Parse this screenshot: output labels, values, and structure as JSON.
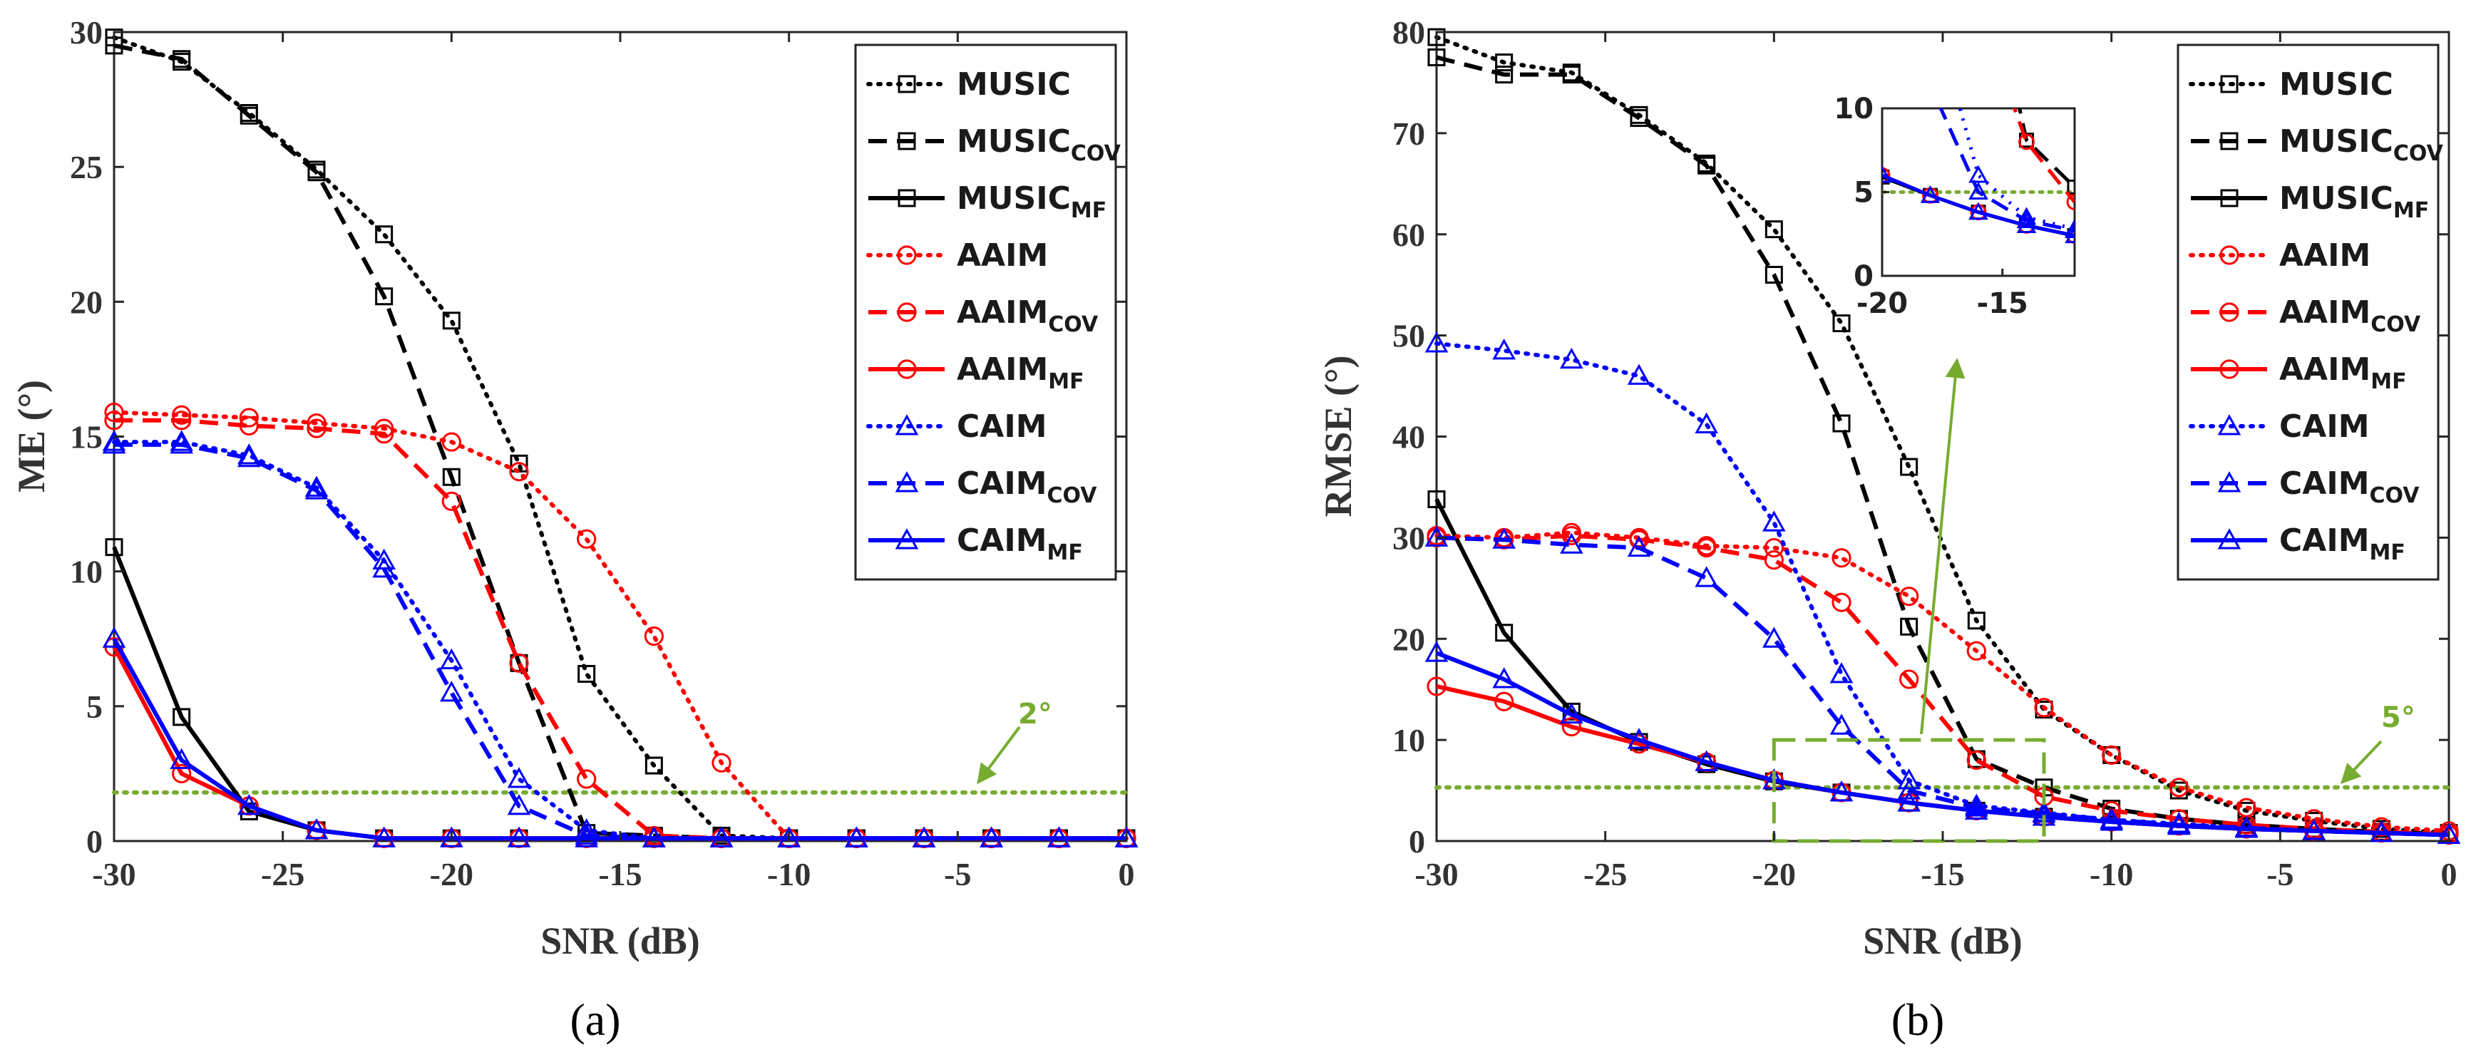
{
  "chart_data": [
    {
      "id": "a",
      "type": "line",
      "caption": "(a)",
      "xlabel": "SNR (dB)",
      "ylabel": "ME (°)",
      "xlim": [
        -30,
        0
      ],
      "ylim": [
        0,
        30
      ],
      "xticks": [
        -30,
        -25,
        -20,
        -15,
        -10,
        -5,
        0
      ],
      "yticks": [
        0,
        5,
        10,
        15,
        20,
        25,
        30
      ],
      "legend_position": "top-right",
      "x": [
        -30,
        -28,
        -26,
        -24,
        -22,
        -20,
        -18,
        -16,
        -14,
        -12,
        -10,
        -8,
        -6,
        -4,
        -2,
        0
      ],
      "threshold": {
        "value": 1.8,
        "label": "2°",
        "color": "#77ac30"
      },
      "series": [
        {
          "name": "MUSIC",
          "sub": "",
          "color": "#000000",
          "style": "dot",
          "marker": "square",
          "values": [
            29.8,
            28.9,
            27.0,
            24.9,
            22.5,
            19.3,
            14.0,
            6.2,
            2.8,
            0.2,
            0.1,
            0.1,
            0.1,
            0.1,
            0.1,
            0.1
          ]
        },
        {
          "name": "MUSIC",
          "sub": "COV",
          "color": "#000000",
          "style": "dash",
          "marker": "square",
          "values": [
            29.5,
            29.0,
            26.9,
            24.8,
            20.2,
            13.5,
            6.6,
            0.3,
            0.2,
            0.1,
            0.1,
            0.1,
            0.1,
            0.1,
            0.1,
            0.1
          ]
        },
        {
          "name": "MUSIC",
          "sub": "MF",
          "color": "#000000",
          "style": "solid",
          "marker": "square",
          "values": [
            10.9,
            4.6,
            1.1,
            0.4,
            0.1,
            0.1,
            0.1,
            0.1,
            0.1,
            0.1,
            0.1,
            0.1,
            0.1,
            0.1,
            0.1,
            0.1
          ]
        },
        {
          "name": "AAIM",
          "sub": "",
          "color": "#ff0000",
          "style": "dot",
          "marker": "circle",
          "values": [
            15.9,
            15.8,
            15.7,
            15.5,
            15.3,
            14.8,
            13.7,
            11.2,
            7.6,
            2.9,
            0.1,
            0.1,
            0.1,
            0.1,
            0.1,
            0.1
          ]
        },
        {
          "name": "AAIM",
          "sub": "COV",
          "color": "#ff0000",
          "style": "dash",
          "marker": "circle",
          "values": [
            15.6,
            15.6,
            15.4,
            15.3,
            15.1,
            12.6,
            6.6,
            2.3,
            0.2,
            0.1,
            0.1,
            0.1,
            0.1,
            0.1,
            0.1,
            0.1
          ]
        },
        {
          "name": "AAIM",
          "sub": "MF",
          "color": "#ff0000",
          "style": "solid",
          "marker": "circle",
          "values": [
            7.2,
            2.5,
            1.3,
            0.4,
            0.1,
            0.1,
            0.1,
            0.1,
            0.1,
            0.1,
            0.1,
            0.1,
            0.1,
            0.1,
            0.1,
            0.1
          ]
        },
        {
          "name": "CAIM",
          "sub": "",
          "color": "#0000ff",
          "style": "dot",
          "marker": "triangle",
          "values": [
            14.8,
            14.8,
            14.3,
            13.1,
            10.4,
            6.7,
            2.3,
            0.4,
            0.1,
            0.1,
            0.1,
            0.1,
            0.1,
            0.1,
            0.1,
            0.1
          ]
        },
        {
          "name": "CAIM",
          "sub": "COV",
          "color": "#0000ff",
          "style": "dash",
          "marker": "triangle",
          "values": [
            14.7,
            14.7,
            14.2,
            13.0,
            10.1,
            5.5,
            1.3,
            0.2,
            0.1,
            0.1,
            0.1,
            0.1,
            0.1,
            0.1,
            0.1,
            0.1
          ]
        },
        {
          "name": "CAIM",
          "sub": "MF",
          "color": "#0000ff",
          "style": "solid",
          "marker": "triangle",
          "values": [
            7.5,
            3.0,
            1.3,
            0.4,
            0.1,
            0.1,
            0.1,
            0.1,
            0.1,
            0.1,
            0.1,
            0.1,
            0.1,
            0.1,
            0.1,
            0.1
          ]
        }
      ]
    },
    {
      "id": "b",
      "type": "line",
      "caption": "(b)",
      "xlabel": "SNR (dB)",
      "ylabel": "RMSE (°)",
      "xlim": [
        -30,
        0
      ],
      "ylim": [
        0,
        80
      ],
      "xticks": [
        -30,
        -25,
        -20,
        -15,
        -10,
        -5,
        0
      ],
      "yticks": [
        0,
        10,
        20,
        30,
        40,
        50,
        60,
        70,
        80
      ],
      "legend_position": "top-right",
      "x": [
        -30,
        -28,
        -26,
        -24,
        -22,
        -20,
        -18,
        -16,
        -14,
        -12,
        -10,
        -8,
        -6,
        -4,
        -2,
        0
      ],
      "threshold": {
        "value": 5.3,
        "label": "5°",
        "color": "#77ac30"
      },
      "zoom_box": {
        "x": [
          -20,
          -12
        ],
        "y": [
          0,
          10
        ]
      },
      "inset": {
        "xlim": [
          -20,
          -12
        ],
        "ylim": [
          0,
          10
        ],
        "xticks": [
          -20,
          -15
        ],
        "yticks": [
          0,
          5,
          10
        ],
        "threshold": 5
      },
      "series": [
        {
          "name": "MUSIC",
          "sub": "",
          "color": "#000000",
          "style": "dot",
          "marker": "square",
          "values": [
            79.5,
            77.0,
            76.0,
            71.8,
            67.0,
            60.5,
            51.2,
            37.0,
            21.8,
            13.0,
            8.5,
            5.0,
            3.0,
            2.0,
            1.2,
            0.8
          ]
        },
        {
          "name": "MUSIC",
          "sub": "COV",
          "color": "#000000",
          "style": "dash",
          "marker": "square",
          "values": [
            77.5,
            75.8,
            75.8,
            71.5,
            66.8,
            56.0,
            41.3,
            21.2,
            8.1,
            5.3,
            3.2,
            2.2,
            1.6,
            1.2,
            0.9,
            0.7
          ]
        },
        {
          "name": "MUSIC",
          "sub": "MF",
          "color": "#000000",
          "style": "solid",
          "marker": "square",
          "values": [
            33.8,
            20.6,
            12.8,
            9.8,
            7.6,
            5.9,
            4.8,
            3.8,
            3.0,
            2.4,
            1.9,
            1.5,
            1.2,
            1.0,
            0.8,
            0.6
          ]
        },
        {
          "name": "AAIM",
          "sub": "",
          "color": "#ff0000",
          "style": "dot",
          "marker": "circle",
          "values": [
            30.2,
            30.0,
            30.5,
            30.0,
            29.2,
            29.0,
            28.0,
            24.2,
            18.8,
            13.2,
            8.5,
            5.3,
            3.3,
            2.2,
            1.4,
            1.0
          ]
        },
        {
          "name": "AAIM",
          "sub": "COV",
          "color": "#ff0000",
          "style": "dash",
          "marker": "circle",
          "values": [
            30.0,
            29.8,
            30.2,
            29.8,
            29.0,
            27.8,
            23.6,
            16.0,
            8.0,
            4.4,
            3.0,
            2.2,
            1.6,
            1.2,
            0.9,
            0.7
          ]
        },
        {
          "name": "AAIM",
          "sub": "MF",
          "color": "#ff0000",
          "style": "solid",
          "marker": "circle",
          "values": [
            15.3,
            13.8,
            11.3,
            9.6,
            7.8,
            6.0,
            4.8,
            3.8,
            3.0,
            2.4,
            1.9,
            1.5,
            1.2,
            1.0,
            0.8,
            0.6
          ]
        },
        {
          "name": "CAIM",
          "sub": "",
          "color": "#0000ff",
          "style": "dot",
          "marker": "triangle",
          "values": [
            49.2,
            48.5,
            47.6,
            46.0,
            41.2,
            31.5,
            16.5,
            6.0,
            3.5,
            2.8,
            2.1,
            1.7,
            1.3,
            1.0,
            0.8,
            0.6
          ]
        },
        {
          "name": "CAIM",
          "sub": "COV",
          "color": "#0000ff",
          "style": "dash",
          "marker": "triangle",
          "values": [
            30.0,
            29.8,
            29.3,
            29.0,
            26.0,
            20.0,
            11.4,
            5.0,
            3.3,
            2.7,
            2.1,
            1.6,
            1.3,
            1.0,
            0.8,
            0.6
          ]
        },
        {
          "name": "CAIM",
          "sub": "MF",
          "color": "#0000ff",
          "style": "solid",
          "marker": "triangle",
          "values": [
            18.6,
            16.0,
            12.5,
            10.0,
            7.8,
            6.0,
            4.8,
            3.8,
            3.0,
            2.4,
            1.9,
            1.5,
            1.2,
            1.0,
            0.8,
            0.6
          ]
        }
      ]
    }
  ]
}
